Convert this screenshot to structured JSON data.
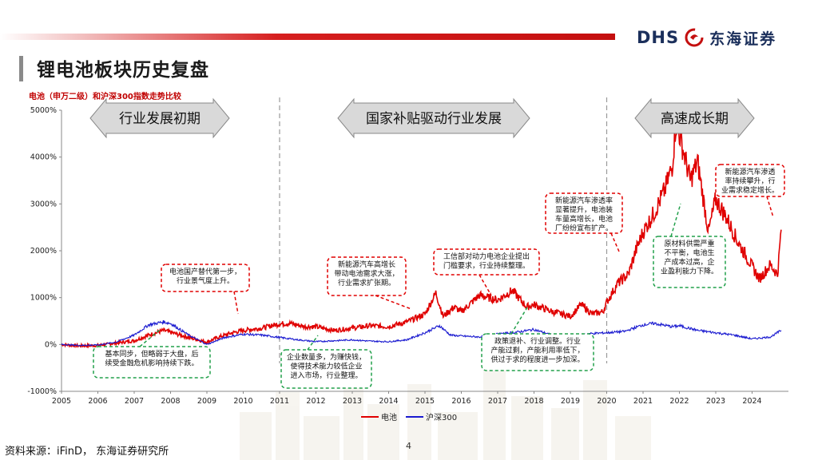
{
  "header": {
    "title": "锂电池板块历史复盘",
    "logo_text": "DHS",
    "logo_cn": "东海证券"
  },
  "footer": {
    "source": "资料来源：iFinD， 东海证券研究所",
    "page_number": "4"
  },
  "colors": {
    "battery": "#e00000",
    "hs300": "#1a1ad0",
    "accent": "#c00000"
  },
  "chart_data": {
    "type": "line",
    "title": "电池（申万二级）和沪深300指数走势比较",
    "x_range": [
      2005,
      2025
    ],
    "x_ticks": [
      "2005",
      "2006",
      "2007",
      "2008",
      "2009",
      "2010",
      "2011",
      "2012",
      "2013",
      "2014",
      "2015",
      "2016",
      "2017",
      "2018",
      "2019",
      "2020",
      "2021",
      "2022",
      "2023",
      "2024"
    ],
    "y_ticks": [
      "5000%",
      "4000%",
      "3000%",
      "2000%",
      "1000%",
      "0%",
      "-1000%"
    ],
    "ylim": [
      -1000,
      5000
    ],
    "y_unit": "%",
    "grid": false,
    "legend_position": "bottom-center",
    "series": [
      {
        "name": "电池",
        "color": "#e00000",
        "points": [
          [
            2005.0,
            0
          ],
          [
            2005.5,
            -30
          ],
          [
            2006.0,
            -20
          ],
          [
            2006.5,
            30
          ],
          [
            2007.0,
            80
          ],
          [
            2007.4,
            200
          ],
          [
            2007.8,
            300
          ],
          [
            2008.0,
            260
          ],
          [
            2008.5,
            150
          ],
          [
            2009.0,
            50
          ],
          [
            2009.3,
            150
          ],
          [
            2009.7,
            250
          ],
          [
            2010.0,
            300
          ],
          [
            2010.5,
            350
          ],
          [
            2011.0,
            440
          ],
          [
            2011.3,
            450
          ],
          [
            2011.7,
            380
          ],
          [
            2012.0,
            380
          ],
          [
            2012.5,
            300
          ],
          [
            2013.0,
            350
          ],
          [
            2013.5,
            400
          ],
          [
            2014.0,
            380
          ],
          [
            2014.5,
            480
          ],
          [
            2015.0,
            650
          ],
          [
            2015.3,
            1100
          ],
          [
            2015.5,
            600
          ],
          [
            2015.8,
            800
          ],
          [
            2016.0,
            700
          ],
          [
            2016.5,
            1050
          ],
          [
            2017.0,
            950
          ],
          [
            2017.4,
            1150
          ],
          [
            2017.8,
            800
          ],
          [
            2018.0,
            850
          ],
          [
            2018.5,
            700
          ],
          [
            2019.0,
            600
          ],
          [
            2019.3,
            850
          ],
          [
            2019.6,
            650
          ],
          [
            2019.9,
            700
          ],
          [
            2020.0,
            900
          ],
          [
            2020.3,
            1300
          ],
          [
            2020.6,
            1500
          ],
          [
            2020.8,
            2000
          ],
          [
            2021.0,
            2400
          ],
          [
            2021.3,
            2800
          ],
          [
            2021.6,
            3300
          ],
          [
            2021.8,
            3800
          ],
          [
            2021.9,
            4700
          ],
          [
            2022.0,
            4500
          ],
          [
            2022.3,
            3500
          ],
          [
            2022.5,
            3900
          ],
          [
            2022.8,
            2400
          ],
          [
            2023.0,
            3100
          ],
          [
            2023.3,
            2700
          ],
          [
            2023.6,
            2200
          ],
          [
            2023.9,
            1800
          ],
          [
            2024.2,
            1400
          ],
          [
            2024.5,
            1700
          ],
          [
            2024.7,
            1500
          ],
          [
            2024.8,
            2450
          ]
        ]
      },
      {
        "name": "沪深300",
        "color": "#1a1ad0",
        "points": [
          [
            2005.0,
            0
          ],
          [
            2005.5,
            -20
          ],
          [
            2006.0,
            -10
          ],
          [
            2006.5,
            50
          ],
          [
            2007.0,
            200
          ],
          [
            2007.4,
            420
          ],
          [
            2007.8,
            480
          ],
          [
            2008.0,
            450
          ],
          [
            2008.5,
            200
          ],
          [
            2009.0,
            0
          ],
          [
            2009.5,
            150
          ],
          [
            2010.0,
            220
          ],
          [
            2010.5,
            200
          ],
          [
            2011.0,
            150
          ],
          [
            2011.5,
            100
          ],
          [
            2012.0,
            60
          ],
          [
            2012.5,
            80
          ],
          [
            2013.0,
            100
          ],
          [
            2013.5,
            70
          ],
          [
            2014.0,
            60
          ],
          [
            2014.5,
            100
          ],
          [
            2015.0,
            250
          ],
          [
            2015.4,
            400
          ],
          [
            2015.7,
            200
          ],
          [
            2016.0,
            180
          ],
          [
            2016.5,
            160
          ],
          [
            2017.0,
            220
          ],
          [
            2017.5,
            260
          ],
          [
            2018.0,
            320
          ],
          [
            2018.5,
            200
          ],
          [
            2019.0,
            150
          ],
          [
            2019.5,
            230
          ],
          [
            2020.0,
            250
          ],
          [
            2020.5,
            280
          ],
          [
            2021.0,
            420
          ],
          [
            2021.3,
            450
          ],
          [
            2021.8,
            380
          ],
          [
            2022.0,
            400
          ],
          [
            2022.5,
            300
          ],
          [
            2023.0,
            250
          ],
          [
            2023.5,
            200
          ],
          [
            2024.0,
            120
          ],
          [
            2024.5,
            160
          ],
          [
            2024.8,
            300
          ]
        ]
      }
    ],
    "phases": [
      {
        "label": "行业发展初期"
      },
      {
        "label": "国家补贴驱动行业发展"
      },
      {
        "label": "高速成长期"
      }
    ],
    "annotations": [
      {
        "lines": [
          "电池国产替代第一步，",
          "行业景气度上升。"
        ]
      },
      {
        "lines": [
          "基本同步，但略弱于大盘，后",
          "续受金融危机影响持续下跌。"
        ]
      },
      {
        "lines": [
          "企业数量多，为赚快钱，",
          "使得技术能力较低企业",
          "进入市场，行业整理。"
        ]
      },
      {
        "lines": [
          "新能源汽车高增长",
          "带动电池需求大涨，",
          "行业需求扩张期。"
        ]
      },
      {
        "lines": [
          "工信部对动力电池企业提出",
          "门槛要求，行业持续整理。"
        ]
      },
      {
        "lines": [
          "政策退补、行业调整。行业",
          "产能过剩，产能利用率低下，",
          "供过于求的程度进一步加深。"
        ]
      },
      {
        "lines": [
          "新能源汽车渗透率",
          "显著提升，电池装",
          "车量高增长，电池",
          "厂纷纷宣布扩产。"
        ]
      },
      {
        "lines": [
          "原材料供需严重",
          "不平衡，电池生",
          "产成本过高，企",
          "业盈利能力下降。"
        ]
      },
      {
        "lines": [
          "新能源汽车渗透",
          "率持续攀升，行",
          "业需求稳定增长。"
        ]
      }
    ]
  }
}
